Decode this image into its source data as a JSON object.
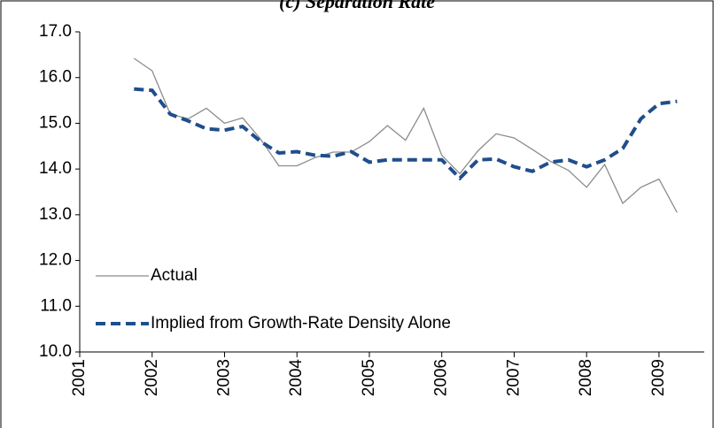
{
  "chart_data": {
    "type": "line",
    "title": "(c) Separation Rate",
    "x": [
      2001.75,
      2002,
      2002.25,
      2002.5,
      2002.75,
      2003,
      2003.25,
      2003.5,
      2003.75,
      2004,
      2004.25,
      2004.5,
      2004.75,
      2005,
      2005.25,
      2005.5,
      2005.75,
      2006,
      2006.25,
      2006.5,
      2006.75,
      2007,
      2007.25,
      2007.5,
      2007.75,
      2008,
      2008.25,
      2008.5,
      2008.75,
      2009,
      2009.25
    ],
    "series": [
      {
        "name": "Actual",
        "color": "#8c8c8c",
        "line_style": "solid",
        "values": [
          16.42,
          16.15,
          15.2,
          15.1,
          15.33,
          15.0,
          15.12,
          14.65,
          14.07,
          14.07,
          14.25,
          14.37,
          14.37,
          14.6,
          14.95,
          14.63,
          15.33,
          14.3,
          13.9,
          14.4,
          14.77,
          14.68,
          14.43,
          14.17,
          13.97,
          13.6,
          14.1,
          13.25,
          13.6,
          13.78,
          13.05
        ]
      },
      {
        "name": "Implied from Growth-Rate Density Alone",
        "color": "#1f4e8c",
        "line_style": "dashed",
        "values": [
          15.75,
          15.72,
          15.2,
          15.05,
          14.88,
          14.85,
          14.93,
          14.6,
          14.35,
          14.38,
          14.3,
          14.28,
          14.38,
          14.15,
          14.2,
          14.2,
          14.2,
          14.2,
          13.8,
          14.2,
          14.22,
          14.05,
          13.95,
          14.15,
          14.2,
          14.05,
          14.2,
          14.45,
          15.1,
          15.43,
          15.48
        ]
      }
    ],
    "xlim": [
      2001,
      2009.625
    ],
    "xticks": [
      2001,
      2002,
      2003,
      2004,
      2005,
      2006,
      2007,
      2008,
      2009
    ],
    "ylim": [
      10,
      17
    ],
    "yticks": [
      {
        "value": 10,
        "label": "10.0"
      },
      {
        "value": 11,
        "label": "11.0"
      },
      {
        "value": 12,
        "label": "12.0"
      },
      {
        "value": 13,
        "label": "13.0"
      },
      {
        "value": 14,
        "label": "14.0"
      },
      {
        "value": 15,
        "label": "15.0"
      },
      {
        "value": 16,
        "label": "16.0"
      },
      {
        "value": 17,
        "label": "17.0"
      }
    ],
    "grid": false,
    "legend": "lower left"
  }
}
